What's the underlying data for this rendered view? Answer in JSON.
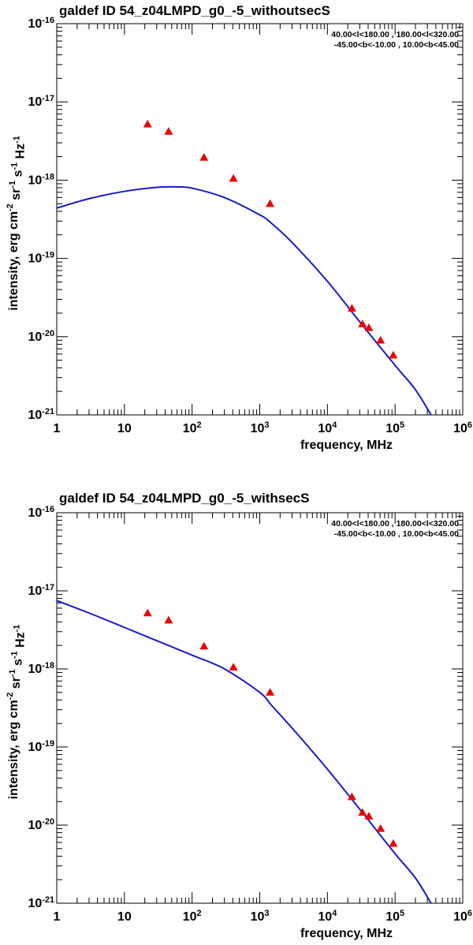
{
  "chart_data": [
    {
      "type": "line+scatter",
      "title": "galdef ID 54_z04LMPD_g0_-5_withoutsecS",
      "region_lines": [
        "40.00<l<180.00 , 180.00<l<320.00",
        "-45.00<b<-10.00 , 10.00<b<45.00"
      ],
      "xlabel": "frequency, MHz",
      "ylabel": "intensity, erg cm^-2 sr^-1 s^-1 Hz^-1",
      "xscale": "log",
      "yscale": "log",
      "xlim": [
        1,
        1000000
      ],
      "ylim": [
        1e-21,
        1e-16
      ],
      "x_tick_labels": [
        "1",
        "10",
        "10^2",
        "10^3",
        "10^4",
        "10^5",
        "10^6"
      ],
      "y_tick_labels": [
        "10^-21",
        "10^-20",
        "10^-19",
        "10^-18",
        "10^-17",
        "10^-16"
      ],
      "series": [
        {
          "name": "model",
          "kind": "line",
          "color": "#1a1acc",
          "x": [
            1,
            3,
            10,
            30,
            60,
            100,
            300,
            1000,
            1500,
            3000,
            10000,
            30000,
            100000,
            200000,
            340000
          ],
          "y": [
            4.4e-19,
            5.8e-19,
            7.2e-19,
            8.1e-19,
            8.2e-19,
            7.9e-19,
            6e-19,
            3.6e-19,
            2.8e-19,
            1.6e-19,
            5.1e-20,
            1.55e-20,
            4.3e-21,
            2.1e-21,
            1e-21
          ]
        },
        {
          "name": "data",
          "kind": "scatter",
          "marker": "triangle",
          "color": "#ee0000",
          "x": [
            22,
            45,
            150,
            408,
            1420,
            23000,
            33000,
            41000,
            61000,
            94000
          ],
          "y": [
            5.2e-18,
            4.2e-18,
            1.95e-18,
            1.05e-18,
            5e-19,
            2.3e-20,
            1.45e-20,
            1.3e-20,
            9e-21,
            5.8e-21
          ]
        }
      ]
    },
    {
      "type": "line+scatter",
      "title": "galdef ID 54_z04LMPD_g0_-5_withsecS",
      "region_lines": [
        "40.00<l<180.00 , 180.00<l<320.00",
        "-45.00<b<-10.00 , 10.00<b<45.00"
      ],
      "xlabel": "frequency, MHz",
      "ylabel": "intensity, erg cm^-2 sr^-1 s^-1 Hz^-1",
      "xscale": "log",
      "yscale": "log",
      "xlim": [
        1,
        1000000
      ],
      "ylim": [
        1e-21,
        1e-16
      ],
      "x_tick_labels": [
        "1",
        "10",
        "10^2",
        "10^3",
        "10^4",
        "10^5",
        "10^6"
      ],
      "y_tick_labels": [
        "10^-21",
        "10^-20",
        "10^-19",
        "10^-18",
        "10^-17",
        "10^-16"
      ],
      "series": [
        {
          "name": "model",
          "kind": "line",
          "color": "#1a1acc",
          "x": [
            1,
            3,
            10,
            30,
            100,
            300,
            1000,
            1500,
            3000,
            10000,
            30000,
            100000,
            200000,
            340000
          ],
          "y": [
            7.5e-18,
            5.2e-18,
            3.4e-18,
            2.3e-18,
            1.5e-18,
            1e-18,
            5e-19,
            3.4e-19,
            1.75e-19,
            5.2e-20,
            1.6e-20,
            4.3e-21,
            2.1e-21,
            1e-21
          ]
        },
        {
          "name": "data",
          "kind": "scatter",
          "marker": "triangle",
          "color": "#ee0000",
          "x": [
            22,
            45,
            150,
            408,
            1420,
            23000,
            33000,
            41000,
            61000,
            94000
          ],
          "y": [
            5.2e-18,
            4.2e-18,
            1.95e-18,
            1.05e-18,
            5e-19,
            2.3e-20,
            1.45e-20,
            1.3e-20,
            9e-21,
            5.8e-21
          ]
        }
      ]
    }
  ]
}
